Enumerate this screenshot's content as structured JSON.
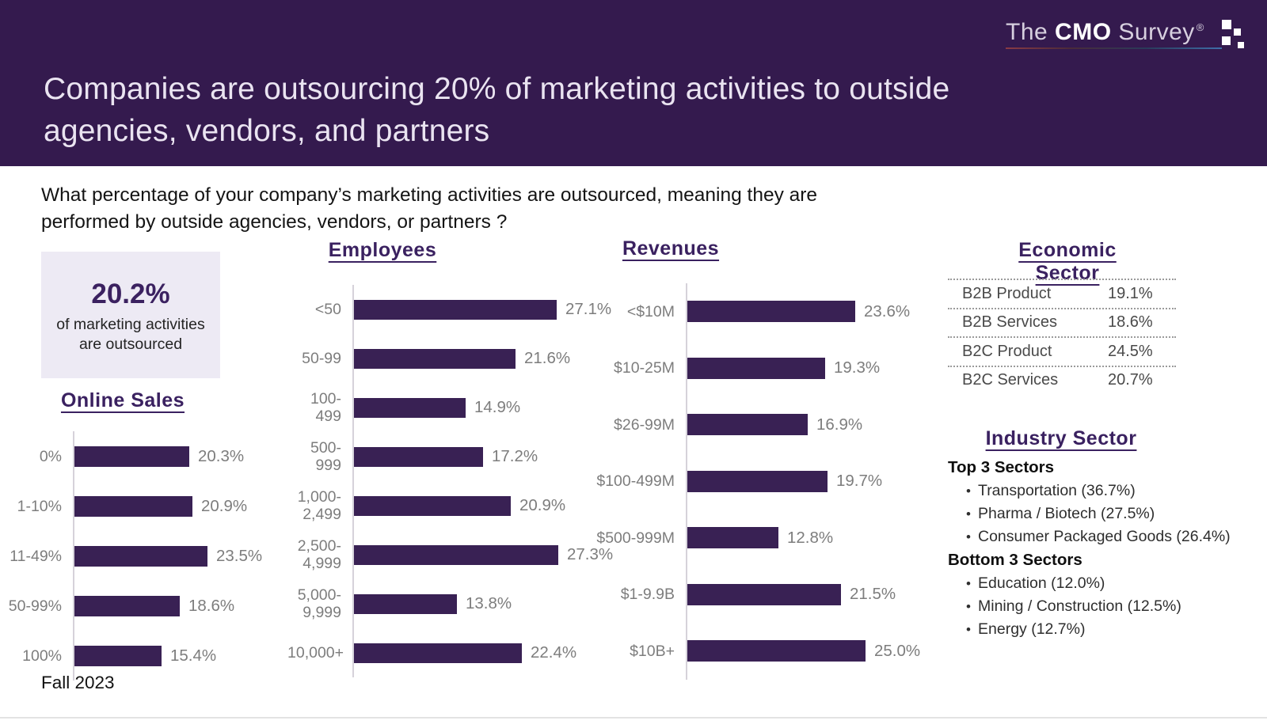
{
  "colors": {
    "header_bg": "#341a4e",
    "bar_fill": "#392154",
    "title_purple": "#3a2160",
    "stat_box_bg": "#edeaf4",
    "label_gray": "#7d7d7d"
  },
  "logo": {
    "part1": "The",
    "part2": "CMO",
    "part3": "Survey",
    "registered": "®"
  },
  "header": {
    "title_lines": [
      "Companies are outsourcing 20% of marketing activities to outside",
      "agencies, vendors, and partners"
    ]
  },
  "question": {
    "lines": [
      "What percentage of your company’s marketing activities are outsourced, meaning they are",
      "performed by outside agencies, vendors, or partners ?"
    ]
  },
  "highlight": {
    "value": "20.2%",
    "caption_lines": [
      "of marketing activities",
      "are outsourced"
    ]
  },
  "footer": {
    "label": "Fall 2023"
  },
  "chart_data": [
    {
      "type": "bar",
      "title": "Online Sales",
      "orientation": "horizontal",
      "unit": "%",
      "categories": [
        "0%",
        "1-10%",
        "11-49%",
        "50-99%",
        "100%"
      ],
      "values": [
        20.3,
        20.9,
        23.5,
        18.6,
        15.4
      ]
    },
    {
      "type": "bar",
      "title": "Employees",
      "orientation": "horizontal",
      "unit": "%",
      "categories": [
        "<50",
        "50-99",
        "100-499",
        "500-999",
        "1,000-2,499",
        "2,500-4,999",
        "5,000-9,999",
        "10,000+"
      ],
      "values": [
        27.1,
        21.6,
        14.9,
        17.2,
        20.9,
        27.3,
        13.8,
        22.4
      ]
    },
    {
      "type": "bar",
      "title": "Revenues",
      "orientation": "horizontal",
      "unit": "%",
      "categories": [
        "<$10M",
        "$10-25M",
        "$26-99M",
        "$100-499M",
        "$500-999M",
        "$1-9.9B",
        "$10B+"
      ],
      "values": [
        23.6,
        19.3,
        16.9,
        19.7,
        12.8,
        21.5,
        25.0
      ]
    },
    {
      "type": "table",
      "title": "Economic Sector",
      "rows": [
        [
          "B2B Product",
          "19.1%"
        ],
        [
          "B2B Services",
          "18.6%"
        ],
        [
          "B2C Product",
          "24.5%"
        ],
        [
          "B2C Services",
          "20.7%"
        ]
      ]
    },
    {
      "type": "list",
      "title": "Industry Sector",
      "groups": [
        {
          "label": "Top 3 Sectors",
          "items": [
            "Transportation (36.7%)",
            "Pharma / Biotech (27.5%)",
            "Consumer Packaged Goods (26.4%)"
          ]
        },
        {
          "label": "Bottom 3 Sectors",
          "items": [
            "Education (12.0%)",
            "Mining / Construction (12.5%)",
            "Energy (12.7%)"
          ]
        }
      ]
    }
  ]
}
